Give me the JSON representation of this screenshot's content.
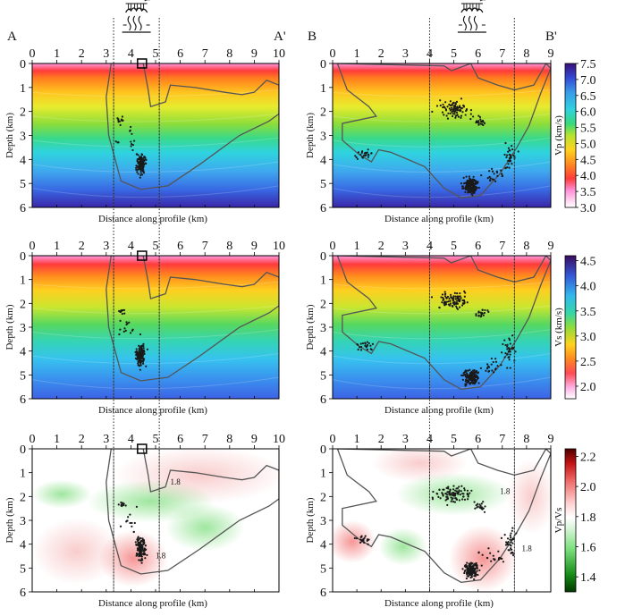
{
  "figure": {
    "profiles": [
      {
        "id": "A",
        "start_label": "A",
        "end_label": "A'",
        "x_ticks": [
          "0",
          "1",
          "2",
          "3",
          "4",
          "5",
          "6",
          "7",
          "8",
          "9",
          "10"
        ],
        "x_max": 10
      },
      {
        "id": "B",
        "start_label": "B",
        "end_label": "B'",
        "x_ticks": [
          "0",
          "1",
          "2",
          "3",
          "4",
          "5",
          "6",
          "7",
          "8",
          "9"
        ],
        "x_max": 9
      }
    ],
    "y_ticks": [
      "0",
      "1",
      "2",
      "3",
      "4",
      "5",
      "6"
    ],
    "depth_range_km": [
      0,
      6
    ],
    "ylabel": "Depth (km)",
    "xlabel": "Distance along profile (km)",
    "rows": [
      {
        "quantity": "Vp",
        "colorbar_label": "Vp (km/s)",
        "colorbar_ticks": [
          "7.5",
          "7.0",
          "6.5",
          "6.0",
          "5.5",
          "5.0",
          "4.5",
          "4.0",
          "3.5",
          "3.0"
        ],
        "range": [
          3.0,
          7.5
        ]
      },
      {
        "quantity": "Vs",
        "colorbar_label": "Vs (km/s)",
        "colorbar_ticks": [
          "4.5",
          "4.0",
          "3.5",
          "3.0",
          "2.5",
          "2.0"
        ],
        "range": [
          1.75,
          4.6
        ]
      },
      {
        "quantity": "Vp/Vs",
        "colorbar_label": "Vp/Vs",
        "colorbar_ticks": [
          "2.2",
          "2.0",
          "1.8",
          "1.6",
          "1.4"
        ],
        "range": [
          1.3,
          2.25
        ]
      }
    ],
    "contour_labels": [
      "1.8",
      "1.8",
      "1.8"
    ],
    "reference_lines": {
      "A_km": [
        3.3,
        5.15
      ],
      "B_km": [
        4.0,
        7.5
      ]
    },
    "marker_A_km": 4.45,
    "colors": {
      "outline": "#555555",
      "events": "#1a1a1a",
      "frame": "#000000"
    }
  }
}
